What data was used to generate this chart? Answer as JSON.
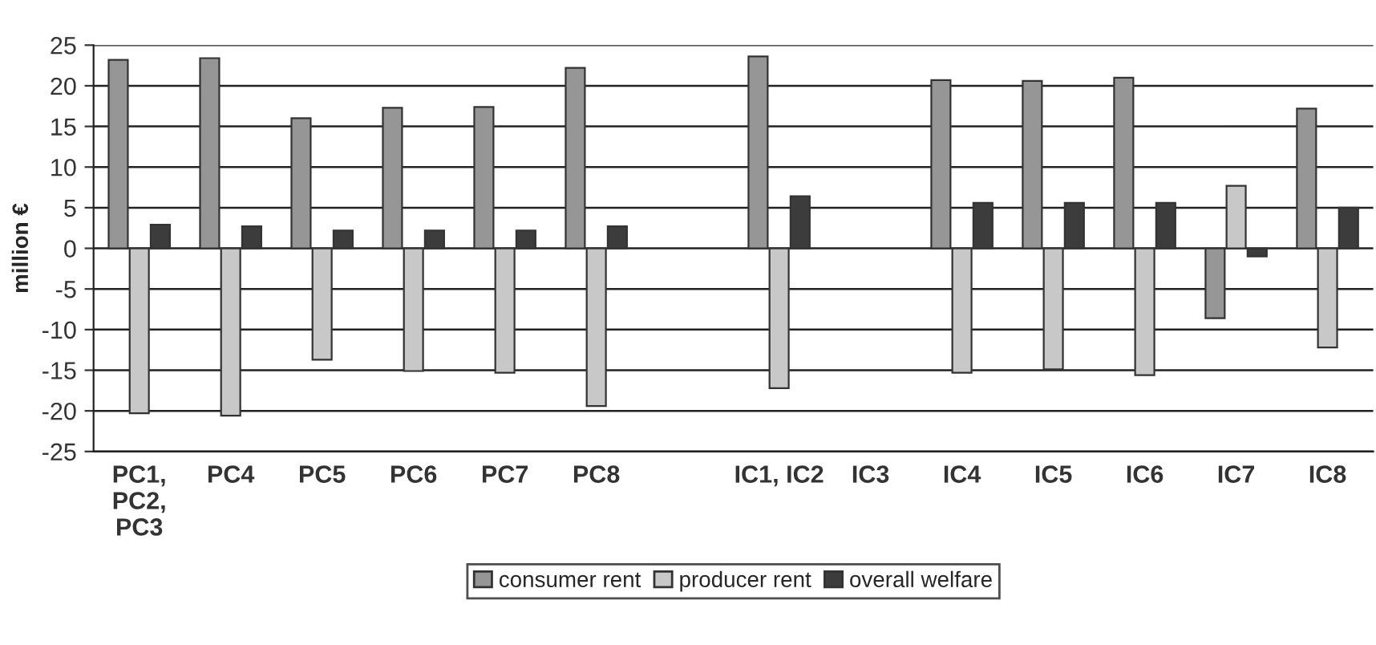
{
  "chart_data": {
    "type": "bar",
    "ylabel": "million €",
    "categories": [
      "PC1,\nPC2,\nPC3",
      "PC4",
      "PC5",
      "PC6",
      "PC7",
      "PC8",
      null,
      "IC1, IC2",
      "IC3",
      "IC4",
      "IC5",
      "IC6",
      "IC7",
      "IC8"
    ],
    "series": [
      {
        "name": "consumer rent",
        "color": "#969696",
        "values": [
          23.2,
          23.4,
          16.0,
          17.3,
          17.4,
          22.2,
          null,
          23.6,
          null,
          20.7,
          20.6,
          21.0,
          -8.6,
          17.2
        ]
      },
      {
        "name": "producer rent",
        "color": "#c8c8c8",
        "values": [
          -20.3,
          -20.6,
          -13.7,
          -15.1,
          -15.3,
          -19.4,
          null,
          -17.2,
          null,
          -15.3,
          -14.9,
          -15.6,
          7.7,
          -12.2
        ]
      },
      {
        "name": "overall welfare",
        "color": "#3c3c3c",
        "values": [
          2.9,
          2.7,
          2.2,
          2.2,
          2.2,
          2.7,
          null,
          6.4,
          null,
          5.6,
          5.6,
          5.6,
          -1.0,
          5.0
        ]
      }
    ],
    "ylim": [
      -25,
      25
    ],
    "yticks": [
      -25,
      -20,
      -15,
      -10,
      -5,
      0,
      5,
      10,
      15,
      20,
      25
    ],
    "grid": "y",
    "legend": "bottom"
  }
}
